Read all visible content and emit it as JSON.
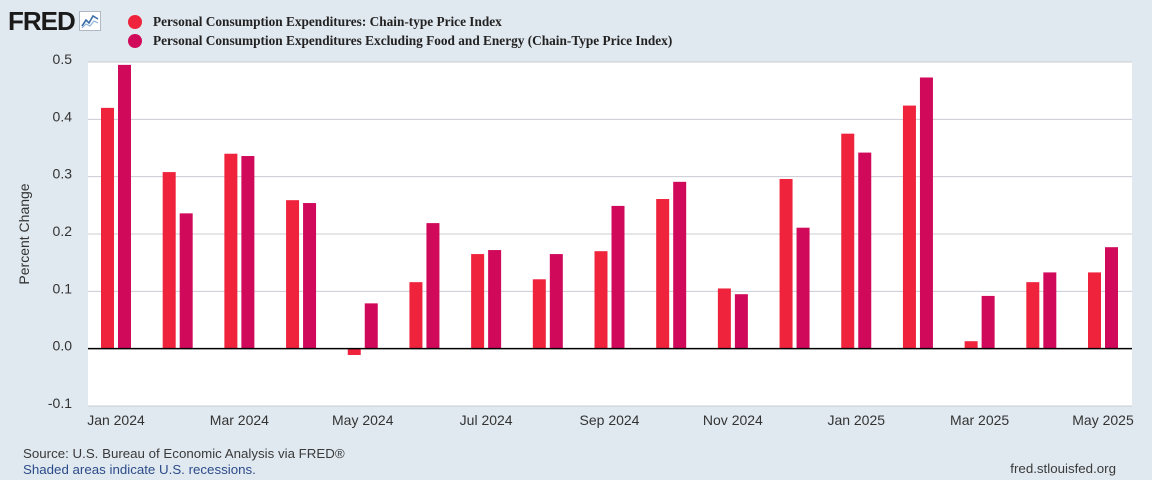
{
  "logo": {
    "text": "FRED"
  },
  "footer": {
    "source": "Source: U.S. Bureau of Economic Analysis via FRED®",
    "recessions": "Shaded areas indicate U.S. recessions.",
    "url": "fred.stlouisfed.org"
  },
  "chart_data": {
    "type": "bar",
    "title": "",
    "xlabel": "",
    "ylabel": "Percent Change",
    "ylim": [
      -0.1,
      0.5
    ],
    "yticks": [
      -0.1,
      0.0,
      0.1,
      0.2,
      0.3,
      0.4,
      0.5
    ],
    "ytick_labels": [
      "-0.1",
      "0.0",
      "0.1",
      "0.2",
      "0.3",
      "0.4",
      "0.5"
    ],
    "grid": true,
    "legend_position": "top",
    "categories": [
      "Jan 2024",
      "Feb 2024",
      "Mar 2024",
      "Apr 2024",
      "May 2024",
      "Jun 2024",
      "Jul 2024",
      "Aug 2024",
      "Sep 2024",
      "Oct 2024",
      "Nov 2024",
      "Dec 2024",
      "Jan 2025",
      "Feb 2025",
      "Mar 2025",
      "Apr 2025",
      "May 2025"
    ],
    "xtick_labels": [
      "Jan 2024",
      "Mar 2024",
      "May 2024",
      "Jul 2024",
      "Sep 2024",
      "Nov 2024",
      "Jan 2025",
      "Mar 2025",
      "May 2025"
    ],
    "series": [
      {
        "name": "Personal Consumption Expenditures: Chain-type Price Index",
        "color": "#ef233c",
        "values": [
          0.42,
          0.308,
          0.34,
          0.259,
          -0.011,
          0.116,
          0.165,
          0.121,
          0.17,
          0.261,
          0.105,
          0.296,
          0.375,
          0.424,
          0.013,
          0.116,
          0.133
        ]
      },
      {
        "name": "Personal Consumption Expenditures Excluding Food and Energy (Chain-Type Price Index)",
        "color": "#d0095b",
        "values": [
          0.495,
          0.236,
          0.336,
          0.254,
          0.079,
          0.219,
          0.172,
          0.165,
          0.249,
          0.291,
          0.095,
          0.211,
          0.342,
          0.473,
          0.092,
          0.133,
          0.177
        ]
      }
    ]
  }
}
